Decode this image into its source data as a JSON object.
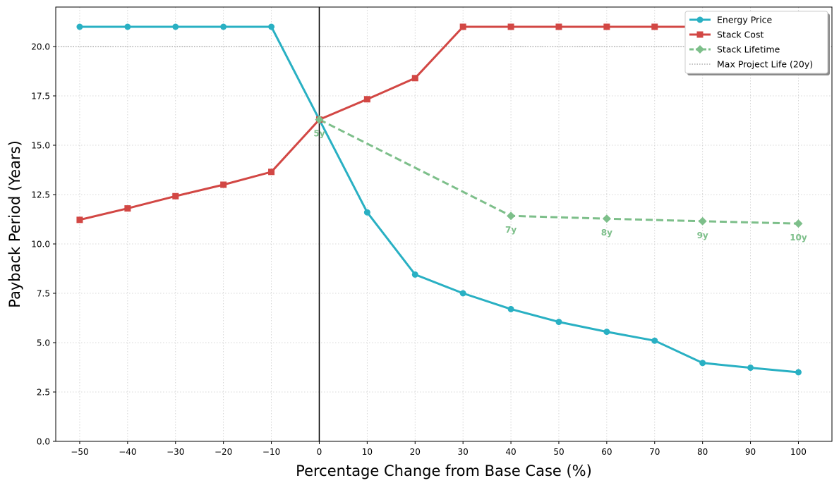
{
  "chart_data": {
    "type": "line",
    "title": "",
    "xlabel": "Percentage Change from Base Case (%)",
    "ylabel": "Payback Period (Years)",
    "xlim": [
      -55,
      107
    ],
    "ylim": [
      0,
      22
    ],
    "grid": true,
    "grid_style": "dotted",
    "legend_position": "top-right",
    "x_ticks": [
      -50,
      -40,
      -30,
      -20,
      -10,
      0,
      10,
      20,
      30,
      40,
      50,
      60,
      70,
      80,
      90,
      100
    ],
    "x_tick_labels": [
      "−50",
      "−40",
      "−30",
      "−20",
      "−10",
      "0",
      "10",
      "20",
      "30",
      "40",
      "50",
      "60",
      "70",
      "80",
      "90",
      "100"
    ],
    "y_ticks": [
      0,
      2.5,
      5,
      7.5,
      10,
      12.5,
      15,
      17.5,
      20
    ],
    "y_tick_labels": [
      "0.0",
      "2.5",
      "5.0",
      "7.5",
      "10.0",
      "12.5",
      "15.0",
      "17.5",
      "20.0"
    ],
    "series": [
      {
        "name": "Energy Price",
        "color": "#29b0c3",
        "marker": "circle",
        "line_style": "solid",
        "x": [
          -50,
          -40,
          -30,
          -20,
          -10,
          0,
          10,
          20,
          30,
          40,
          50,
          60,
          70,
          80,
          90,
          100
        ],
        "y": [
          21.0,
          21.0,
          21.0,
          21.0,
          21.0,
          16.3,
          11.6,
          8.45,
          7.5,
          6.7,
          6.05,
          5.55,
          5.1,
          3.97,
          3.73,
          3.5
        ]
      },
      {
        "name": "Stack Cost",
        "color": "#d24744",
        "marker": "square",
        "line_style": "solid",
        "x": [
          -50,
          -40,
          -30,
          -20,
          -10,
          0,
          10,
          20,
          30,
          40,
          50,
          60,
          70,
          80,
          90,
          100
        ],
        "y": [
          11.22,
          11.8,
          12.42,
          13.0,
          13.65,
          16.3,
          17.33,
          18.4,
          21.0,
          21.0,
          21.0,
          21.0,
          21.0,
          21.0,
          21.0,
          21.0
        ]
      },
      {
        "name": "Stack Lifetime",
        "color": "#7dbf8a",
        "marker": "diamond",
        "line_style": "dashed",
        "x": [
          0,
          40,
          60,
          80,
          100
        ],
        "y": [
          16.3,
          11.42,
          11.28,
          11.15,
          11.03
        ],
        "point_labels": [
          "5y",
          "7y",
          "8y",
          "9y",
          "10y"
        ]
      }
    ],
    "reference_lines": [
      {
        "name": "Max Project Life (20y)",
        "orientation": "horizontal",
        "value": 20,
        "color": "#888888",
        "style": "dotted"
      },
      {
        "orientation": "vertical",
        "value": 0,
        "color": "#000000",
        "style": "solid"
      }
    ]
  }
}
